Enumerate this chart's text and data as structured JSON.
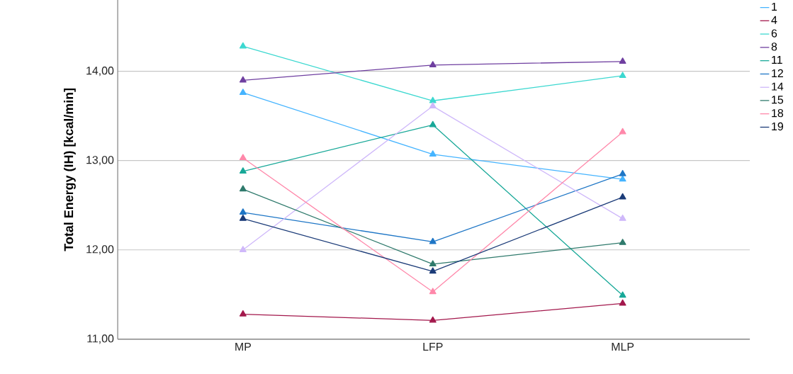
{
  "chart_data": {
    "type": "line",
    "ylabel": "Total Energy (IH) [kcal/min]",
    "categories": [
      "MP",
      "LFP",
      "MLP"
    ],
    "series": [
      {
        "name": "1",
        "color": "#45b4ff",
        "values": [
          13.76,
          13.07,
          12.79
        ]
      },
      {
        "name": "4",
        "color": "#a3184c",
        "values": [
          11.28,
          11.21,
          11.4
        ]
      },
      {
        "name": "6",
        "color": "#3cd8d0",
        "values": [
          14.28,
          13.67,
          13.95
        ]
      },
      {
        "name": "8",
        "color": "#6f3fa0",
        "values": [
          13.9,
          14.07,
          14.11
        ]
      },
      {
        "name": "11",
        "color": "#18a898",
        "values": [
          12.88,
          13.4,
          11.49
        ]
      },
      {
        "name": "12",
        "color": "#1e76c6",
        "values": [
          12.42,
          12.09,
          12.85
        ]
      },
      {
        "name": "14",
        "color": "#cfb8fa",
        "values": [
          12.0,
          13.61,
          12.35
        ]
      },
      {
        "name": "15",
        "color": "#2f7a6c",
        "values": [
          12.68,
          11.84,
          12.08
        ]
      },
      {
        "name": "18",
        "color": "#ff88aa",
        "values": [
          13.03,
          11.53,
          13.32
        ]
      },
      {
        "name": "19",
        "color": "#1b3b78",
        "values": [
          12.35,
          11.76,
          12.59
        ]
      }
    ],
    "ylim": [
      11,
      14.8
    ],
    "yticks": [
      {
        "value": 11,
        "label": "11,00"
      },
      {
        "value": 12,
        "label": "12,00"
      },
      {
        "value": 13,
        "label": "13,00"
      },
      {
        "value": 14,
        "label": "14,00"
      }
    ],
    "grid": "y",
    "legend": "right",
    "marker": "triangle",
    "line_style": "solid"
  }
}
